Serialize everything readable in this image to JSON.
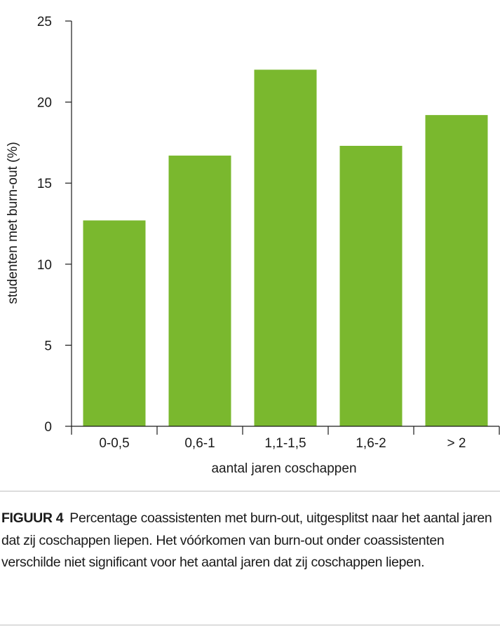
{
  "chart_data": {
    "type": "bar",
    "categories": [
      "0-0,5",
      "0,6-1",
      "1,1-1,5",
      "1,6-2",
      "> 2"
    ],
    "values": [
      12.7,
      16.7,
      22.0,
      17.3,
      19.2
    ],
    "xlabel": "aantal jaren coschappen",
    "ylabel": "studenten met burn-out (%)",
    "ylim": [
      0,
      25
    ],
    "yticks": [
      0,
      5,
      10,
      15,
      20,
      25
    ],
    "grid": false,
    "bar_color": "#7ab82e"
  },
  "caption": {
    "label": "FIGUUR 4",
    "text": "Percentage coassistenten met burn-out, uitgesplitst naar het aantal jaren dat zij coschappen liepen. Het vóórkomen van burn-out onder coassistenten verschilde niet significant voor het aantal jaren dat zij coschappen liepen."
  }
}
